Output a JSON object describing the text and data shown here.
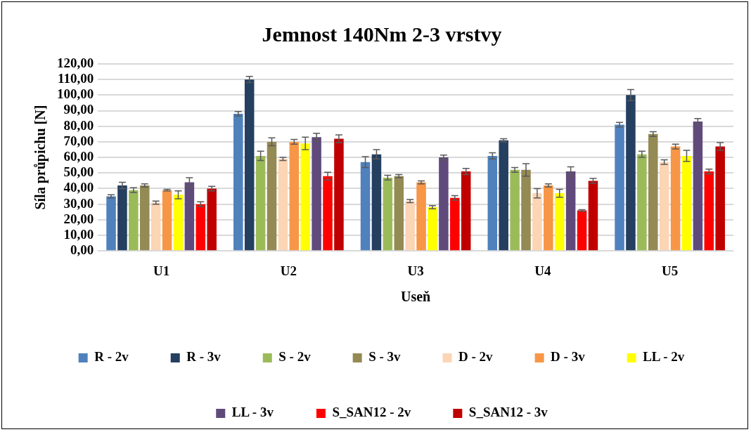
{
  "chart_data": {
    "type": "bar",
    "title": "Jemnost 140Nm 2-3 vrstvy",
    "xlabel": "Useň",
    "ylabel": "Síla průpichu [N]",
    "categories": [
      "U1",
      "U2",
      "U3",
      "U4",
      "U5"
    ],
    "series": [
      {
        "name": "R - 2v",
        "color": "#4f81bd",
        "values": [
          35,
          88,
          57,
          61,
          81
        ],
        "errors": [
          1,
          1.5,
          3.5,
          2,
          1.5
        ]
      },
      {
        "name": "R - 3v",
        "color": "#243f60",
        "values": [
          42,
          110,
          62,
          71,
          100
        ],
        "errors": [
          2,
          2,
          3,
          1,
          3.5
        ]
      },
      {
        "name": "S - 2v",
        "color": "#9bbb59",
        "values": [
          39,
          61,
          47,
          52,
          62
        ],
        "errors": [
          1.5,
          3,
          1.5,
          1.5,
          2
        ]
      },
      {
        "name": "S - 3v",
        "color": "#948a54",
        "values": [
          42,
          70,
          48,
          52,
          75
        ],
        "errors": [
          1,
          2.5,
          1,
          4,
          1.5
        ]
      },
      {
        "name": "D - 2v",
        "color": "#fcd5b5",
        "values": [
          31,
          59,
          32,
          37,
          57
        ],
        "errors": [
          1,
          1,
          1,
          3,
          1.5
        ]
      },
      {
        "name": "D - 3v",
        "color": "#f79646",
        "values": [
          39,
          70,
          44,
          42,
          67
        ],
        "errors": [
          0.5,
          1.5,
          1,
          1,
          1.5
        ]
      },
      {
        "name": "LL - 2v",
        "color": "#ffff00",
        "values": [
          36,
          69,
          28,
          37,
          61
        ],
        "errors": [
          2.5,
          4,
          1,
          2.5,
          3.5
        ]
      },
      {
        "name": "LL - 3v",
        "color": "#604a7b",
        "values": [
          44,
          73,
          60,
          51,
          83
        ],
        "errors": [
          3,
          2.5,
          1.5,
          3,
          2
        ]
      },
      {
        "name": "S_SAN12 - 2v",
        "color": "#ff0000",
        "values": [
          30,
          48,
          34,
          26,
          51
        ],
        "errors": [
          1.5,
          2.5,
          1.5,
          0.5,
          1.5
        ]
      },
      {
        "name": "S_SAN12 - 3v",
        "color": "#c00000",
        "values": [
          40,
          72,
          51,
          45,
          67
        ],
        "errors": [
          1.5,
          2.5,
          2,
          1.5,
          2.5
        ]
      }
    ],
    "ylim": [
      0,
      120
    ],
    "yticks": [
      {
        "value": 0,
        "label": "0,00"
      },
      {
        "value": 10,
        "label": "10,00"
      },
      {
        "value": 20,
        "label": "20,00"
      },
      {
        "value": 30,
        "label": "30,00"
      },
      {
        "value": 40,
        "label": "40,00"
      },
      {
        "value": 50,
        "label": "50,00"
      },
      {
        "value": 60,
        "label": "60,00"
      },
      {
        "value": 70,
        "label": "70,00"
      },
      {
        "value": 80,
        "label": "80,00"
      },
      {
        "value": 90,
        "label": "90,00"
      },
      {
        "value": 100,
        "label": "100,00"
      },
      {
        "value": 110,
        "label": "110,00"
      },
      {
        "value": 120,
        "label": "120,00"
      }
    ],
    "grid": "y",
    "legend": "bottom"
  }
}
